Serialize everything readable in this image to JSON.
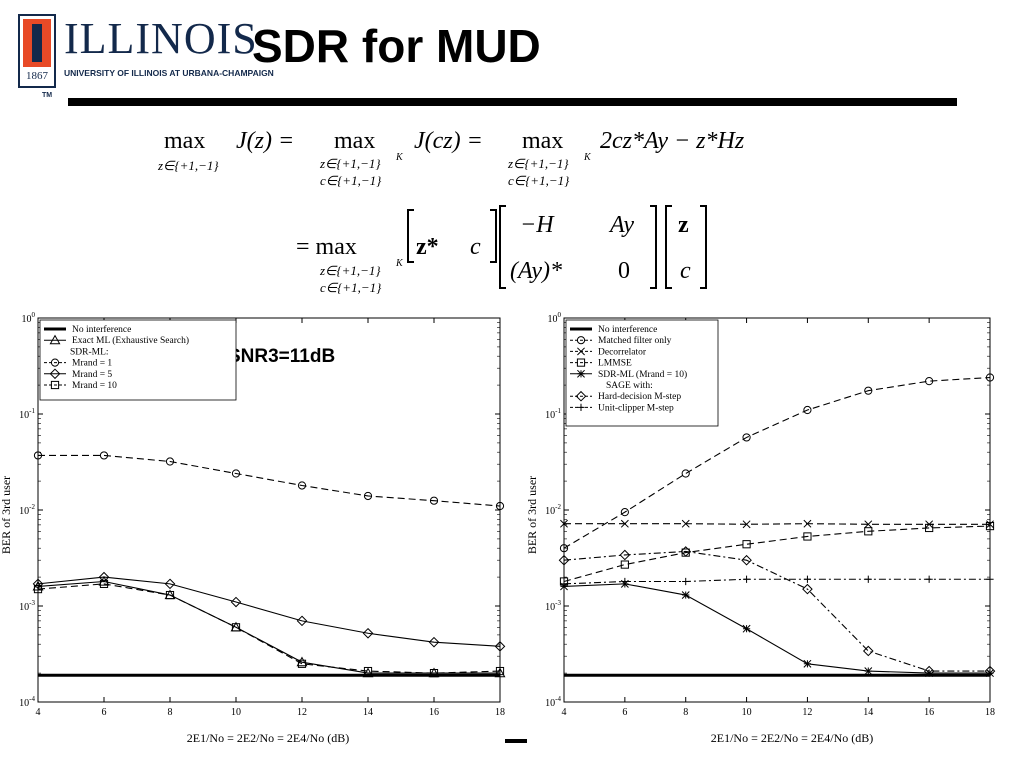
{
  "logo": {
    "word": "ILLINOIS",
    "subtitle": "UNIVERSITY OF ILLINOIS AT URBANA-CHAMPAIGN",
    "year": "1867",
    "tm": "TM"
  },
  "slide": {
    "title": "SDR for MUD"
  },
  "equation": {
    "line1": [
      "max",
      "J(z) =",
      "max",
      "J(cz) =",
      "max",
      "2cz*Ay − z*Hz"
    ],
    "sub_single": "z∈{+1,−1}",
    "sub_pair": [
      "z∈{+1,−1}",
      "c∈{+1,−1}"
    ],
    "sup_K": "K",
    "line2_prefix": "= max",
    "row_vector": [
      "z*",
      "c"
    ],
    "matrix": [
      "−H",
      "Ay",
      "(Ay)*",
      "0"
    ],
    "col_vector": [
      "z",
      "c"
    ]
  },
  "chart_data": [
    {
      "type": "line",
      "yscale": "log",
      "xlim": [
        4,
        18
      ],
      "ylim": [
        0.0001,
        1
      ],
      "xticks": [
        "4",
        "6",
        "8",
        "10",
        "12",
        "14",
        "16",
        "18"
      ],
      "yticks": [
        "10^-4",
        "10^-3",
        "10^-2",
        "10^-1",
        "10^0"
      ],
      "ylabel": "BER of 3rd user",
      "xlabel": "2E1/No = 2E2/No = 2E4/No (dB)",
      "annotation": "SNR3=11dB",
      "legend_position": "top-left",
      "legend_header": "SDR-ML:",
      "x": [
        4,
        6,
        8,
        10,
        12,
        14,
        16,
        18
      ],
      "series": [
        {
          "name": "No interference",
          "marker": "none",
          "dash": "solid",
          "thick": true,
          "values": [
            0.00019,
            0.00019,
            0.00019,
            0.00019,
            0.00019,
            0.00019,
            0.00019,
            0.00019
          ]
        },
        {
          "name": "Exact ML (Exhaustive Search)",
          "marker": "triangle",
          "dash": "solid",
          "values": [
            0.0016,
            0.0018,
            0.0013,
            0.0006,
            0.00026,
            0.0002,
            0.0002,
            0.0002
          ]
        },
        {
          "name": "Mrand = 1",
          "marker": "circle",
          "dash": "dashed",
          "values": [
            0.037,
            0.037,
            0.032,
            0.024,
            0.018,
            0.014,
            0.0125,
            0.011
          ]
        },
        {
          "name": "Mrand = 5",
          "marker": "diamond",
          "dash": "solid",
          "values": [
            0.0017,
            0.002,
            0.0017,
            0.0011,
            0.0007,
            0.00052,
            0.00042,
            0.00038
          ]
        },
        {
          "name": "Mrand = 10",
          "marker": "square",
          "dash": "dashed",
          "values": [
            0.0015,
            0.0017,
            0.0013,
            0.0006,
            0.00025,
            0.00021,
            0.0002,
            0.00021
          ]
        }
      ]
    },
    {
      "type": "line",
      "yscale": "log",
      "xlim": [
        4,
        18
      ],
      "ylim": [
        0.0001,
        1
      ],
      "xticks": [
        "4",
        "6",
        "8",
        "10",
        "12",
        "14",
        "16",
        "18"
      ],
      "yticks": [
        "10^-4",
        "10^-3",
        "10^-2",
        "10^-1",
        "10^0"
      ],
      "ylabel": "BER of 3rd user",
      "xlabel": "2E1/No = 2E2/No = 2E4/No (dB)",
      "legend_position": "top-left",
      "legend_header": "SAGE with:",
      "x": [
        4,
        6,
        8,
        10,
        12,
        14,
        16,
        18
      ],
      "series": [
        {
          "name": "No interference",
          "marker": "none",
          "dash": "solid",
          "thick": true,
          "values": [
            0.00019,
            0.00019,
            0.00019,
            0.00019,
            0.00019,
            0.00019,
            0.00019,
            0.00019
          ]
        },
        {
          "name": "Matched filter only",
          "marker": "circle",
          "dash": "dashed",
          "values": [
            0.004,
            0.0095,
            0.024,
            0.057,
            0.11,
            0.175,
            0.22,
            0.24
          ]
        },
        {
          "name": "Decorrelator",
          "marker": "x",
          "dash": "dashed",
          "values": [
            0.0072,
            0.0072,
            0.0072,
            0.0071,
            0.0072,
            0.0071,
            0.0071,
            0.0071
          ]
        },
        {
          "name": "LMMSE",
          "marker": "square",
          "dash": "dashed",
          "values": [
            0.0018,
            0.0027,
            0.0036,
            0.0044,
            0.0053,
            0.006,
            0.0065,
            0.0068
          ]
        },
        {
          "name": "SDR-ML (Mrand = 10)",
          "marker": "star",
          "dash": "solid",
          "values": [
            0.0016,
            0.0017,
            0.0013,
            0.00058,
            0.00025,
            0.00021,
            0.0002,
            0.0002
          ]
        },
        {
          "name": "Hard-decision M-step",
          "marker": "diamond",
          "dash": "dashdot",
          "values": [
            0.003,
            0.0034,
            0.0037,
            0.003,
            0.0015,
            0.00034,
            0.00021,
            0.00021
          ]
        },
        {
          "name": "Unit-clipper M-step",
          "marker": "plus",
          "dash": "dashdot",
          "values": [
            0.0017,
            0.0018,
            0.0018,
            0.0019,
            0.0019,
            0.0019,
            0.0019,
            0.0019
          ]
        }
      ]
    }
  ]
}
